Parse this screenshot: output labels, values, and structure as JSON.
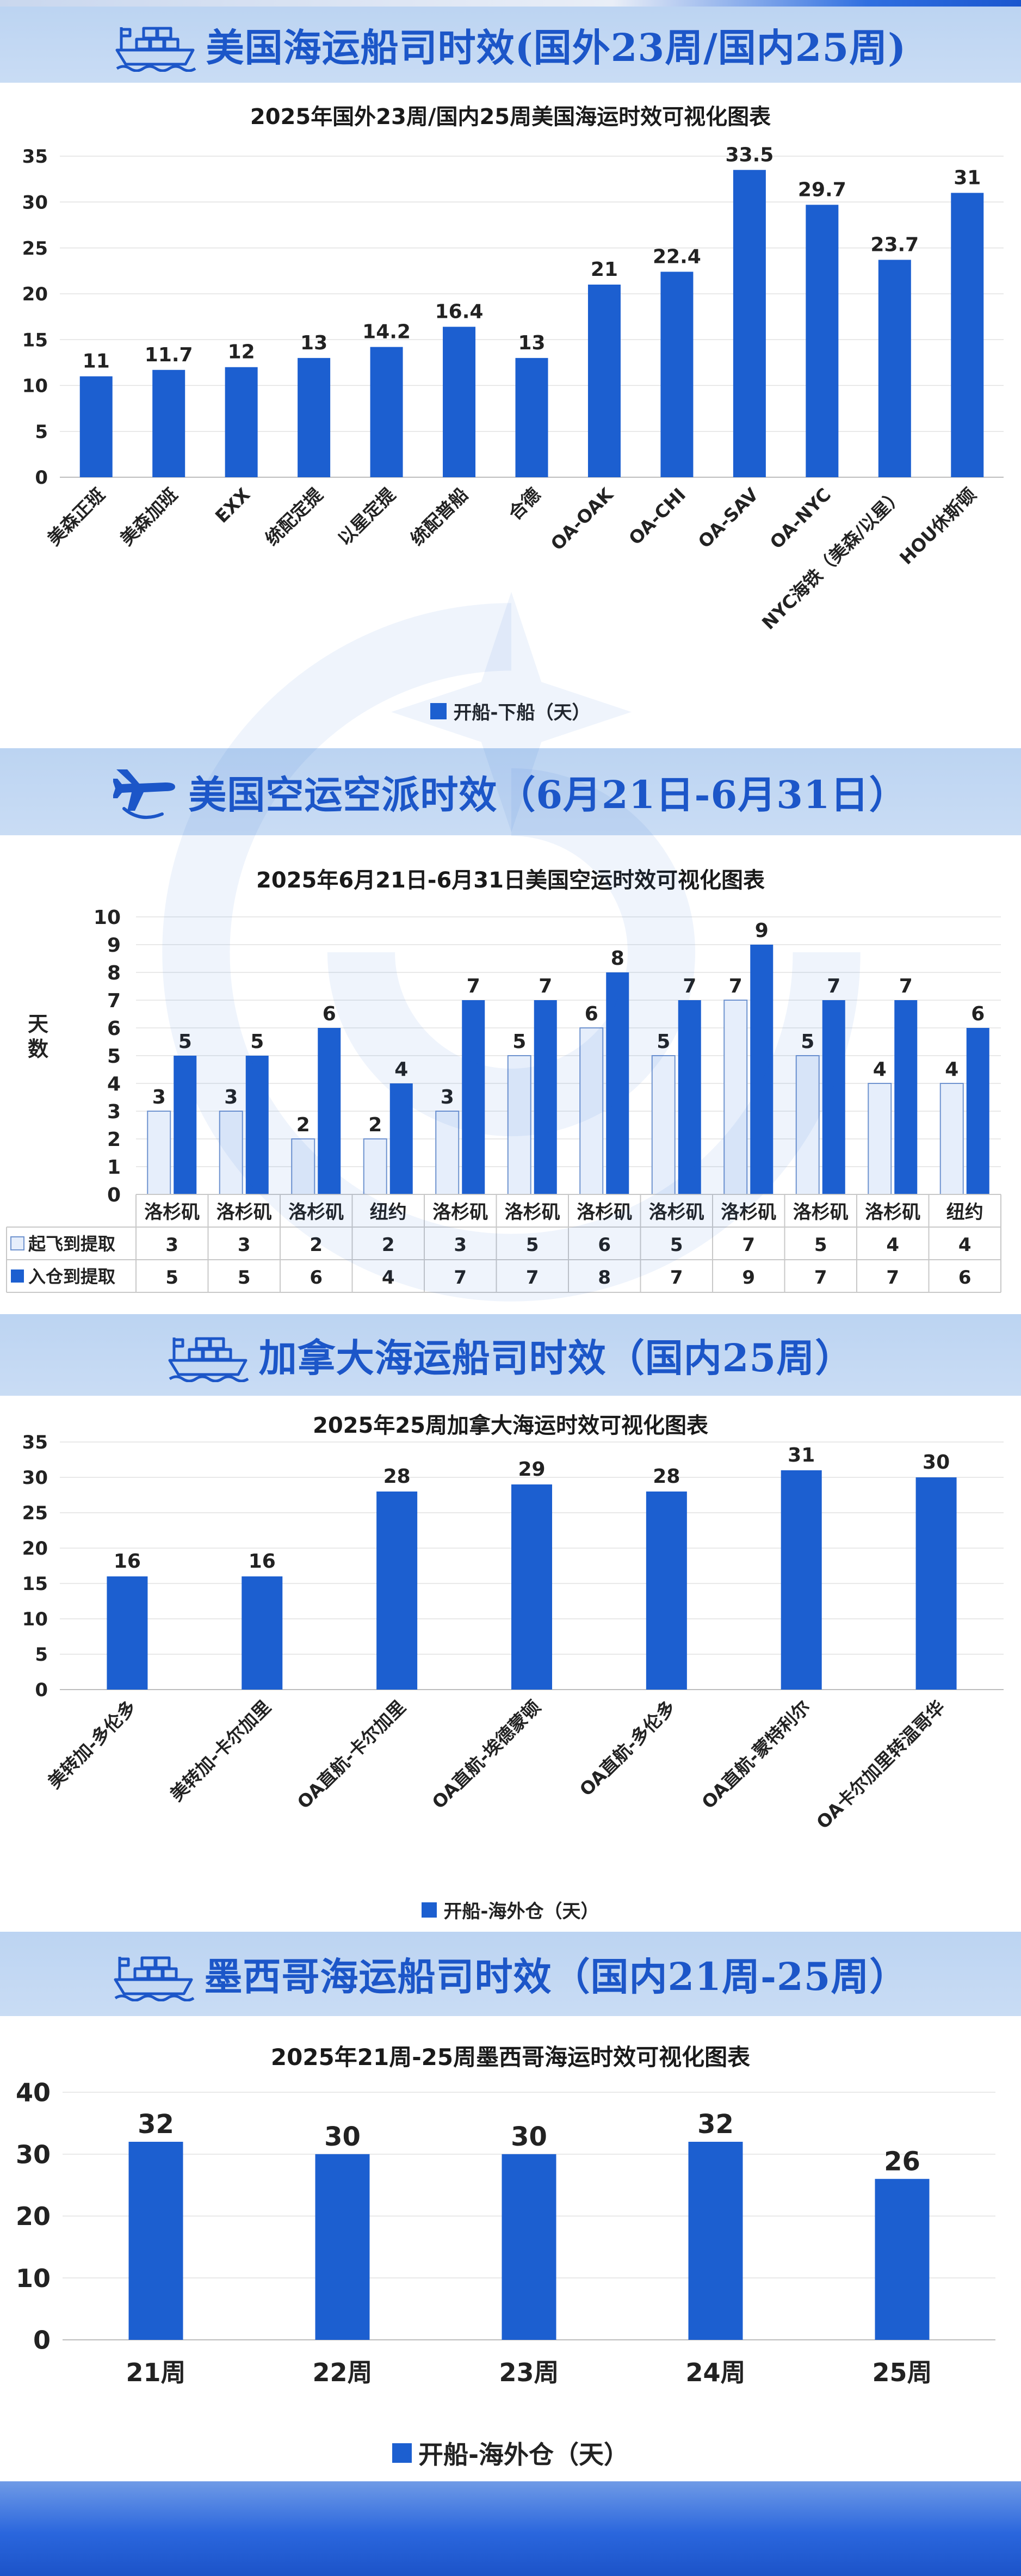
{
  "colors": {
    "bar": "#1c5fd0",
    "bar_light": "#e6eefb",
    "bar_light_stroke": "#6f93cf",
    "banner_text": "#1c56c8"
  },
  "sections": [
    {
      "banner_icon": "ship-icon",
      "banner_title": "美国海运船司时效(国外23周/国内25周)"
    },
    {
      "banner_icon": "airplane-icon",
      "banner_title": "美国空运空派时效（6月21日-6月31日）"
    },
    {
      "banner_icon": "ship-icon",
      "banner_title": "加拿大海运船司时效（国内25周）"
    },
    {
      "banner_icon": "ship-icon",
      "banner_title": "墨西哥海运船司时效（国内21周-25周）"
    }
  ],
  "chart_data": [
    {
      "type": "bar",
      "title": "2025年国外23周/国内25周美国海运时效可视化图表",
      "categories": [
        "美森正班",
        "美森加班",
        "EXX",
        "统配定提",
        "以星定提",
        "统配普船",
        "合德",
        "OA-OAK",
        "OA-CHI",
        "OA-SAV",
        "OA-NYC",
        "NYC海铁（美森/以星）",
        "HOU休斯顿"
      ],
      "series": [
        {
          "name": "开船-下船（天）",
          "values": [
            11,
            11.7,
            12,
            13,
            14.2,
            16.4,
            13,
            21,
            22.4,
            33.5,
            29.7,
            23.7,
            31
          ]
        }
      ],
      "ylim": [
        0,
        35
      ],
      "yticks": [
        0,
        5,
        10,
        15,
        20,
        25,
        30,
        35
      ],
      "legend": "bottom"
    },
    {
      "type": "bar",
      "title": "2025年6月21日-6月31日美国空运时效可视化图表",
      "ylabel": "天数",
      "categories": [
        "洛杉矶",
        "洛杉矶",
        "洛杉矶",
        "纽约",
        "洛杉矶",
        "洛杉矶",
        "洛杉矶",
        "洛杉矶",
        "洛杉矶",
        "洛杉矶",
        "洛杉矶",
        "纽约"
      ],
      "series": [
        {
          "name": "起飞到提取",
          "values": [
            3,
            3,
            2,
            2,
            3,
            5,
            6,
            5,
            7,
            5,
            4,
            4
          ]
        },
        {
          "name": "入仓到提取",
          "values": [
            5,
            5,
            6,
            4,
            7,
            7,
            8,
            7,
            9,
            7,
            7,
            6
          ]
        }
      ],
      "ylim": [
        0,
        10
      ],
      "yticks": [
        0,
        1,
        2,
        3,
        4,
        5,
        6,
        7,
        8,
        9,
        10
      ],
      "legend": "data-table"
    },
    {
      "type": "bar",
      "title": "2025年25周加拿大海运时效可视化图表",
      "categories": [
        "美转加-多伦多",
        "美转加-卡尔加里",
        "OA直航-卡尔加里",
        "OA直航-埃德蒙顿",
        "OA直航-多伦多",
        "OA直航-蒙特利尔",
        "OA卡尔加里转温哥华"
      ],
      "series": [
        {
          "name": "开船-海外仓（天）",
          "values": [
            16,
            16,
            28,
            29,
            28,
            31,
            30
          ]
        }
      ],
      "ylim": [
        0,
        35
      ],
      "yticks": [
        0,
        5,
        10,
        15,
        20,
        25,
        30,
        35
      ],
      "legend": "bottom"
    },
    {
      "type": "bar",
      "title": "2025年21周-25周墨西哥海运时效可视化图表",
      "categories": [
        "21周",
        "22周",
        "23周",
        "24周",
        "25周"
      ],
      "series": [
        {
          "name": "开船-海外仓（天）",
          "values": [
            32,
            30,
            30,
            32,
            26
          ]
        }
      ],
      "ylim": [
        0,
        40
      ],
      "yticks": [
        0,
        10,
        20,
        30,
        40
      ],
      "legend": "bottom"
    }
  ]
}
